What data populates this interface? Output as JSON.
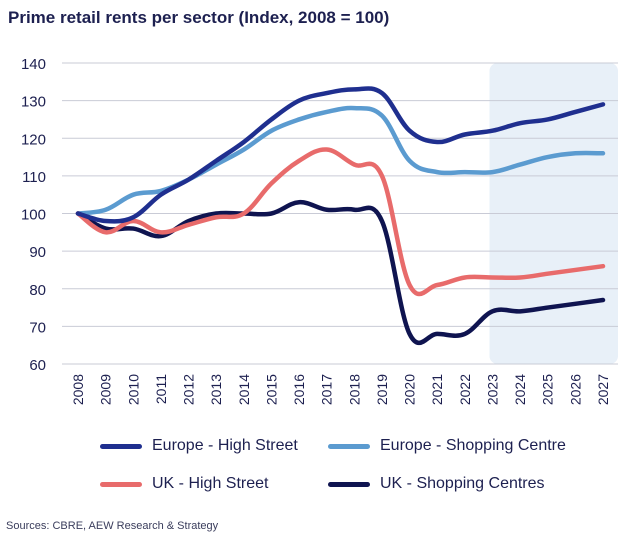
{
  "chart_data": {
    "type": "line",
    "title": "Prime retail rents per sector (Index, 2008 = 100)",
    "xlabel": "",
    "ylabel": "",
    "ylim": [
      60,
      140
    ],
    "yticks": [
      60,
      70,
      80,
      90,
      100,
      110,
      120,
      130,
      140
    ],
    "x": [
      "2008",
      "2009",
      "2010",
      "2011",
      "2012",
      "2013",
      "2014",
      "2015",
      "2016",
      "2017",
      "2018",
      "2019",
      "2020",
      "2021",
      "2022",
      "2023",
      "2024",
      "2025",
      "2026",
      "2027"
    ],
    "forecast_from": "2023",
    "grid": "horizontal",
    "legend_position": "bottom",
    "series": [
      {
        "name": "Europe - High Street",
        "color": "#1f2f8f",
        "values": [
          100,
          98,
          99,
          105,
          109,
          114,
          119,
          125,
          130,
          132,
          133,
          132,
          122,
          119,
          121,
          122,
          124,
          125,
          127,
          129
        ]
      },
      {
        "name": "Europe - Shopping Centre",
        "color": "#5b9bd0",
        "values": [
          100,
          101,
          105,
          106,
          109,
          113,
          117,
          122,
          125,
          127,
          128,
          126,
          114,
          111,
          111,
          111,
          113,
          115,
          116,
          116
        ]
      },
      {
        "name": "UK - High Street",
        "color": "#e86b6b",
        "values": [
          100,
          95,
          98,
          95,
          97,
          99,
          100,
          108,
          114,
          117,
          113,
          110,
          81,
          81,
          83,
          83,
          83,
          84,
          85,
          86
        ]
      },
      {
        "name": "UK - Shopping Centres",
        "color": "#0f1450",
        "values": [
          100,
          96,
          96,
          94,
          98,
          100,
          100,
          100,
          103,
          101,
          101,
          98,
          68,
          68,
          68,
          74,
          74,
          75,
          76,
          77
        ]
      }
    ]
  },
  "source": "Sources: CBRE, AEW Research & Strategy"
}
